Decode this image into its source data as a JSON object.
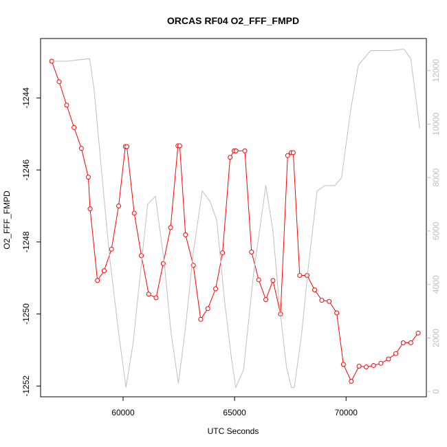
{
  "chart_data": {
    "type": "line",
    "title": "ORCAS RF04 O2_FFF_FMPD",
    "xlabel": "UTC Seconds",
    "ylabel": "O2_FFF_FMPD",
    "xlim": [
      56300,
      73600
    ],
    "ylim": [
      -1252.3,
      -1242.35
    ],
    "y2lim": [
      -200,
      13200
    ],
    "x_ticks": [
      {
        "value": 60000,
        "label": "60000"
      },
      {
        "value": 65000,
        "label": "65000"
      },
      {
        "value": 70000,
        "label": "70000"
      }
    ],
    "y_ticks": [
      {
        "value": -1244,
        "label": "-1244"
      },
      {
        "value": -1246,
        "label": "-1246"
      },
      {
        "value": -1248,
        "label": "-1248"
      },
      {
        "value": -1250,
        "label": "-1250"
      },
      {
        "value": -1252,
        "label": "-1252"
      }
    ],
    "y2_ticks": [
      {
        "value": 0,
        "label": "0"
      },
      {
        "value": 2000,
        "label": "2000"
      },
      {
        "value": 4000,
        "label": "4000"
      },
      {
        "value": 6000,
        "label": "6000"
      },
      {
        "value": 8000,
        "label": "8000"
      },
      {
        "value": 10000,
        "label": "10000"
      },
      {
        "value": 12000,
        "label": "12000"
      }
    ],
    "series": [
      {
        "axis": "left",
        "color": "#ff0000",
        "style": "line-with-open-circles",
        "points": [
          [
            56800,
            -1242.98
          ],
          [
            57130,
            -1243.55
          ],
          [
            57470,
            -1244.2
          ],
          [
            57800,
            -1244.82
          ],
          [
            58130,
            -1245.4
          ],
          [
            58440,
            -1246.2
          ],
          [
            58520,
            -1247.08
          ],
          [
            58850,
            -1249.07
          ],
          [
            59150,
            -1248.8
          ],
          [
            59480,
            -1248.2
          ],
          [
            59800,
            -1247.0
          ],
          [
            60100,
            -1245.35
          ],
          [
            60170,
            -1245.35
          ],
          [
            60500,
            -1247.2
          ],
          [
            60820,
            -1248.38
          ],
          [
            61150,
            -1249.45
          ],
          [
            61480,
            -1249.55
          ],
          [
            61800,
            -1248.6
          ],
          [
            62130,
            -1247.6
          ],
          [
            62460,
            -1245.33
          ],
          [
            62540,
            -1245.33
          ],
          [
            62800,
            -1247.8
          ],
          [
            63150,
            -1248.65
          ],
          [
            63480,
            -1250.15
          ],
          [
            63800,
            -1249.85
          ],
          [
            64150,
            -1249.3
          ],
          [
            64460,
            -1248.3
          ],
          [
            64800,
            -1245.65
          ],
          [
            64980,
            -1245.47
          ],
          [
            65060,
            -1245.47
          ],
          [
            65460,
            -1245.47
          ],
          [
            65760,
            -1248.28
          ],
          [
            66080,
            -1249.05
          ],
          [
            66400,
            -1249.6
          ],
          [
            66720,
            -1249.07
          ],
          [
            67060,
            -1250.0
          ],
          [
            67380,
            -1245.6
          ],
          [
            67540,
            -1245.52
          ],
          [
            67630,
            -1245.52
          ],
          [
            67920,
            -1248.93
          ],
          [
            68250,
            -1248.93
          ],
          [
            68590,
            -1249.33
          ],
          [
            68910,
            -1249.62
          ],
          [
            69240,
            -1249.65
          ],
          [
            69580,
            -1249.97
          ],
          [
            69880,
            -1251.4
          ],
          [
            70230,
            -1251.87
          ],
          [
            70580,
            -1251.45
          ],
          [
            70900,
            -1251.47
          ],
          [
            71230,
            -1251.43
          ],
          [
            71560,
            -1251.37
          ],
          [
            71900,
            -1251.25
          ],
          [
            72230,
            -1251.1
          ],
          [
            72560,
            -1250.8
          ],
          [
            72900,
            -1250.8
          ],
          [
            73230,
            -1250.53
          ]
        ]
      },
      {
        "axis": "right",
        "color": "#bebebe",
        "style": "line",
        "points": [
          [
            56800,
            12350
          ],
          [
            57500,
            12350
          ],
          [
            58500,
            12450
          ],
          [
            58700,
            11300
          ],
          [
            59150,
            7200
          ],
          [
            59400,
            5000
          ],
          [
            59800,
            2200
          ],
          [
            60130,
            150
          ],
          [
            60450,
            1800
          ],
          [
            60800,
            4600
          ],
          [
            61100,
            7000
          ],
          [
            61450,
            7300
          ],
          [
            61850,
            4800
          ],
          [
            62150,
            2200
          ],
          [
            62480,
            300
          ],
          [
            62800,
            2400
          ],
          [
            63150,
            5200
          ],
          [
            63550,
            7500
          ],
          [
            63900,
            7100
          ],
          [
            64200,
            6400
          ],
          [
            64550,
            3400
          ],
          [
            64850,
            1300
          ],
          [
            65050,
            150
          ],
          [
            65400,
            800
          ],
          [
            65850,
            4400
          ],
          [
            66400,
            7700
          ],
          [
            66720,
            6000
          ],
          [
            67000,
            3300
          ],
          [
            67330,
            900
          ],
          [
            67550,
            150
          ],
          [
            67680,
            150
          ],
          [
            68000,
            2100
          ],
          [
            68300,
            4600
          ],
          [
            68700,
            7500
          ],
          [
            69050,
            7700
          ],
          [
            69500,
            7700
          ],
          [
            69800,
            8000
          ],
          [
            70200,
            10500
          ],
          [
            70550,
            12200
          ],
          [
            71100,
            12750
          ],
          [
            72000,
            12750
          ],
          [
            72600,
            12800
          ],
          [
            72900,
            12450
          ],
          [
            73300,
            9850
          ]
        ]
      }
    ]
  }
}
